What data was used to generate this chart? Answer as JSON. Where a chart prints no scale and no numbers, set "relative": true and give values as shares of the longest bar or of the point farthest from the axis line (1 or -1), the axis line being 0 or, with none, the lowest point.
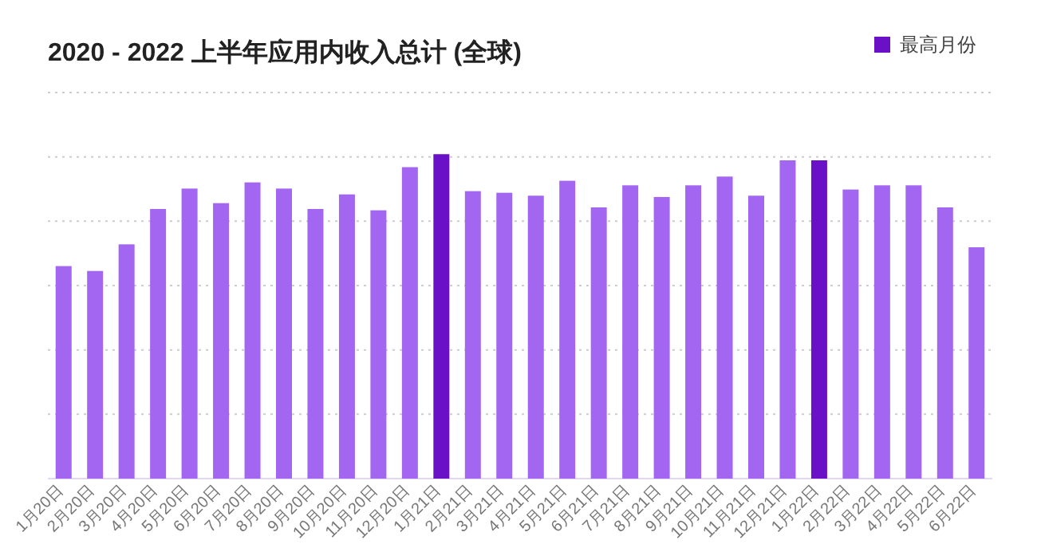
{
  "chart_data": {
    "type": "bar",
    "title": "2020 - 2022 上半年应用内收入总计 (全球)",
    "relative": true,
    "stacked": true,
    "grid": "y",
    "legend": "top right",
    "categories": [
      "1月20日",
      "2月20日",
      "3月20日",
      "4月20日",
      "5月20日",
      "6月20日",
      "7月20日",
      "8月20日",
      "9月20日",
      "10月20日",
      "11月20日",
      "12月20日",
      "1月21日",
      "2月21日",
      "3月21日",
      "4月21日",
      "5月21日",
      "6月21日",
      "7月21日",
      "8月21日",
      "9月21日",
      "10月21日",
      "11月21日",
      "12月21日",
      "1月22日",
      "2月22日",
      "3月22日",
      "4月22日",
      "5月22日",
      "6月22日"
    ],
    "series": [
      {
        "color": "#a366f0",
        "values": [
          0.655,
          0.64,
          0.722,
          0.831,
          0.894,
          0.849,
          0.913,
          0.894,
          0.831,
          0.876,
          0.827,
          0.96,
          null,
          0.886,
          0.881,
          0.872,
          0.918,
          0.836,
          0.904,
          0.868,
          0.904,
          0.931,
          0.872,
          0.981,
          null,
          0.891,
          0.904,
          0.904,
          0.836,
          0.713
        ]
      },
      {
        "name": "最高月份",
        "color": "#6a11c7",
        "values": [
          null,
          null,
          null,
          null,
          null,
          null,
          null,
          null,
          null,
          null,
          null,
          null,
          1,
          null,
          null,
          null,
          null,
          null,
          null,
          null,
          null,
          null,
          null,
          null,
          0.981,
          null,
          null,
          null,
          null,
          null
        ]
      }
    ]
  }
}
